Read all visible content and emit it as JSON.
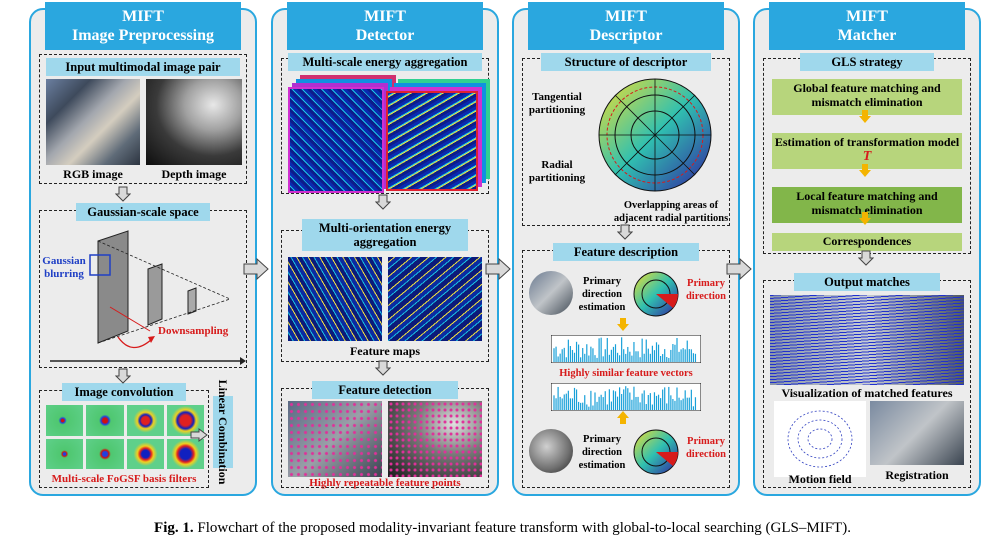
{
  "columns": [
    {
      "title_line1": "MIFT",
      "title_line2": "Image Preprocessing"
    },
    {
      "title_line1": "MIFT",
      "title_line2": "Detector"
    },
    {
      "title_line1": "MIFT",
      "title_line2": "Descriptor"
    },
    {
      "title_line1": "MIFT",
      "title_line2": "Matcher"
    }
  ],
  "preprocessing": {
    "input_title": "Input multimodal image pair",
    "rgb_label": "RGB image",
    "depth_label": "Depth image",
    "gaussian_title": "Gaussian-scale space",
    "gaussian_blurring": "Gaussian blurring",
    "downsampling": "Downsampling",
    "convolution_title": "Image convolution",
    "filters_label": "Multi-scale FoGSF basis filters",
    "linear_combination": "Linear Combination"
  },
  "detector": {
    "multiscale_title": "Multi-scale energy aggregation",
    "multiorientation_title": "Multi-orientation energy aggregation",
    "feature_maps": "Feature maps",
    "feature_detection_title": "Feature detection",
    "repeatable_points": "Highly repeatable feature points"
  },
  "descriptor": {
    "structure_title": "Structure of descriptor",
    "tangential": "Tangential partitioning",
    "radial": "Radial partitioning",
    "overlapping": "Overlapping areas of adjacent radial partitions",
    "feature_description_title": "Feature description",
    "primary_estimation": "Primary direction estimation",
    "primary_direction": "Primary direction",
    "similar_vectors": "Highly similar feature vectors"
  },
  "matcher": {
    "gls_title": "GLS strategy",
    "step1": "Global feature matching and mismatch elimination",
    "step2": "Estimation of transformation model",
    "step2_symbol": "T",
    "step3": "Local feature matching and mismatch elimination",
    "step4": "Correspondences",
    "output_title": "Output matches",
    "visualization": "Visualization of matched features",
    "motion_field": "Motion field",
    "registration": "Registration"
  },
  "caption": {
    "prefix": "Fig. 1.",
    "text": "Flowchart of the proposed modality-invariant feature transform with global-to-local searching (GLS–MIFT)."
  },
  "colors": {
    "column_border": "#2aa7df",
    "subtitle_bg": "#9fd8ec",
    "gls_green": "#b7d57c",
    "gls_dark_green": "#82b64a",
    "arrow_orange": "#f4b400",
    "label_red": "#d71b1b"
  }
}
